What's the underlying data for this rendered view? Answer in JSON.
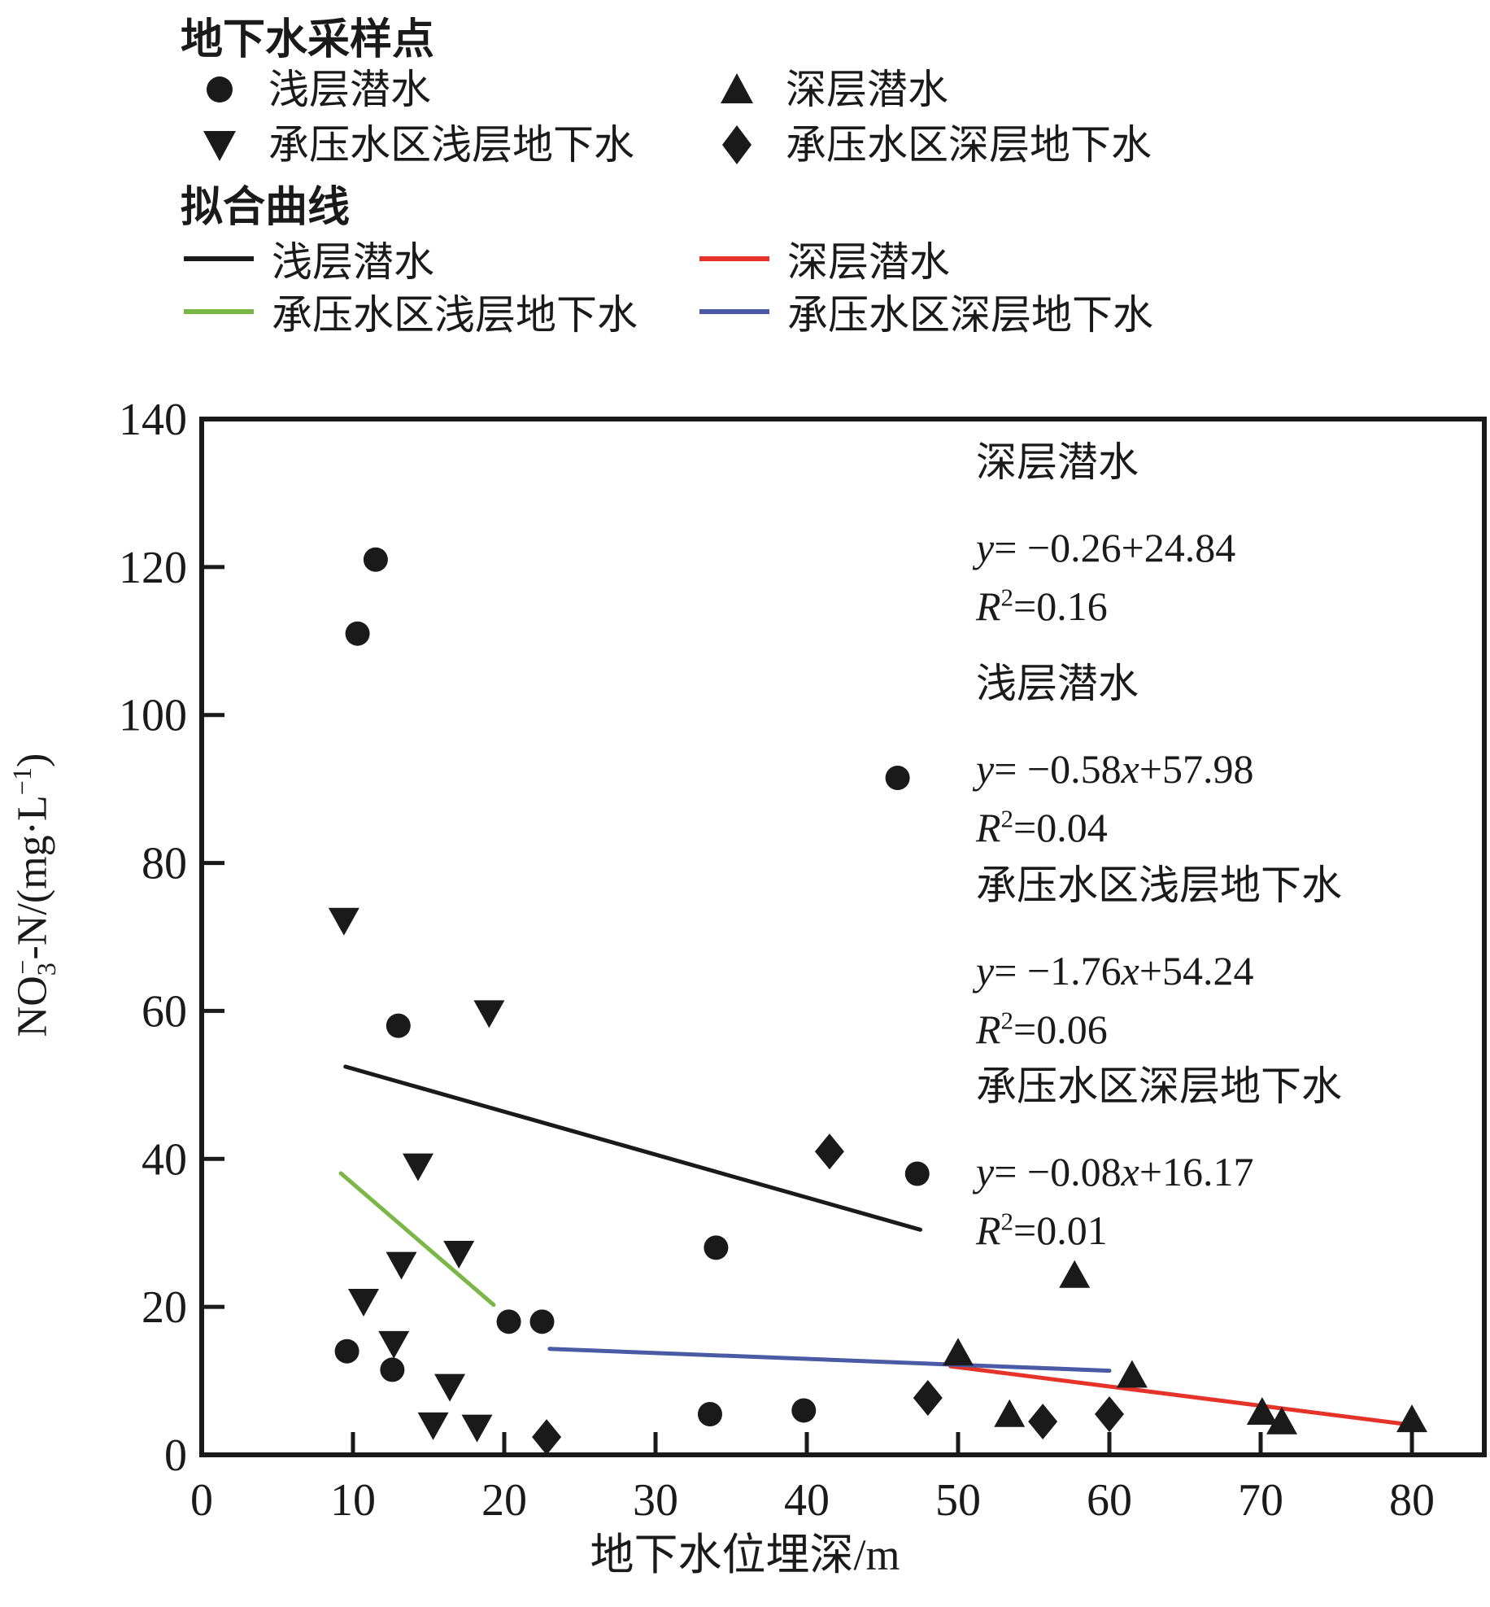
{
  "legend_samples": {
    "title": "地下水采样点",
    "items": [
      {
        "key": "shallow-phreatic",
        "marker": "circle",
        "label": "浅层潜水"
      },
      {
        "key": "deep-phreatic",
        "marker": "triangle-up",
        "label": "深层潜水"
      },
      {
        "key": "confined-area-shallow",
        "marker": "triangle-down",
        "label": "承压水区浅层地下水"
      },
      {
        "key": "confined-area-deep",
        "marker": "diamond",
        "label": "承压水区深层地下水"
      }
    ]
  },
  "legend_fits": {
    "title": "拟合曲线",
    "items": [
      {
        "key": "shallow-phreatic",
        "color": "#1a1a1a",
        "label": "浅层潜水"
      },
      {
        "key": "deep-phreatic",
        "color": "#e6332a",
        "label": "深层潜水"
      },
      {
        "key": "confined-area-shallow",
        "color": "#7ab648",
        "label": "承压水区浅层地下水"
      },
      {
        "key": "confined-area-deep",
        "color": "#4a5aa5",
        "label": "承压水区深层地下水"
      }
    ]
  },
  "axes": {
    "x_label": "地下水位埋深/m",
    "y_label_parts": {
      "p1": "NO",
      "sub": "3",
      "sup": "−",
      "p2": "-N/(mg·L",
      "sup2": "−1",
      "p3": ")"
    }
  },
  "annotations": [
    {
      "title": "深层潜水",
      "eq_lhs": "y",
      "eq_pre": "= −0.26",
      "eq_x": "",
      "eq_post": "+24.84",
      "r2_lhs": "R",
      "r2_sup": "2",
      "r2_rest": "=0.16"
    },
    {
      "title": "浅层潜水",
      "eq_lhs": "y",
      "eq_pre": "= −0.58",
      "eq_x": "x",
      "eq_post": "+57.98",
      "r2_lhs": "R",
      "r2_sup": "2",
      "r2_rest": "=0.04"
    },
    {
      "title": "承压水区浅层地下水",
      "eq_lhs": "y",
      "eq_pre": "= −1.76",
      "eq_x": "x",
      "eq_post": "+54.24",
      "r2_lhs": "R",
      "r2_sup": "2",
      "r2_rest": "=0.06"
    },
    {
      "title": "承压水区深层地下水",
      "eq_lhs": "y",
      "eq_pre": "= −0.08",
      "eq_x": "x",
      "eq_post": "+16.17",
      "r2_lhs": "R",
      "r2_sup": "2",
      "r2_rest": "=0.01"
    }
  ],
  "chart_data": {
    "type": "scatter",
    "title": "",
    "xlabel": "地下水位埋深/m",
    "ylabel": "NO3−-N/(mg·L−1)",
    "xlim": [
      0,
      84.8
    ],
    "ylim": [
      0,
      140
    ],
    "x_ticks": [
      0,
      10,
      20,
      30,
      40,
      50,
      60,
      70,
      80
    ],
    "y_ticks": [
      0,
      20,
      40,
      60,
      80,
      100,
      120,
      140
    ],
    "grid": false,
    "legend_position": "top-left",
    "marker_color": "#1a1a1a",
    "series": [
      {
        "name": "浅层潜水",
        "key": "shallow-phreatic",
        "marker": "circle",
        "color": "#1a1a1a",
        "points": [
          [
            11.5,
            121
          ],
          [
            10.3,
            111
          ],
          [
            13,
            58
          ],
          [
            46,
            91.5
          ],
          [
            47.3,
            38
          ],
          [
            34,
            28
          ],
          [
            20.3,
            18
          ],
          [
            22.5,
            18
          ],
          [
            9.6,
            14
          ],
          [
            12.6,
            11.5
          ],
          [
            33.6,
            5.5
          ],
          [
            39.8,
            6
          ]
        ]
      },
      {
        "name": "深层潜水",
        "key": "deep-phreatic",
        "marker": "triangle-up",
        "color": "#1a1a1a",
        "points": [
          [
            50,
            13.5
          ],
          [
            57.7,
            24
          ],
          [
            61.5,
            10.5
          ],
          [
            53.4,
            5.2
          ],
          [
            70.1,
            5.5
          ],
          [
            71.4,
            4.2
          ],
          [
            80,
            4.5
          ]
        ]
      },
      {
        "name": "承压水区浅层地下水",
        "key": "confined-area-shallow",
        "marker": "triangle-down",
        "color": "#1a1a1a",
        "points": [
          [
            9.4,
            72.5
          ],
          [
            19,
            60
          ],
          [
            14.3,
            39.3
          ],
          [
            17,
            27.5
          ],
          [
            13.2,
            26
          ],
          [
            10.7,
            21
          ],
          [
            12.7,
            15.3
          ],
          [
            16.4,
            9.5
          ],
          [
            15.3,
            4.3
          ],
          [
            18.2,
            4
          ]
        ]
      },
      {
        "name": "承压水区深层地下水",
        "key": "confined-area-deep",
        "marker": "diamond",
        "color": "#1a1a1a",
        "points": [
          [
            41.5,
            41
          ],
          [
            48,
            7.7
          ],
          [
            22.8,
            2.4
          ],
          [
            55.6,
            4.5
          ],
          [
            60,
            5.5
          ]
        ]
      }
    ],
    "fit_lines": [
      {
        "name": "浅层潜水",
        "key": "shallow-phreatic",
        "color": "#1a1a1a",
        "slope": -0.58,
        "intercept": 57.98,
        "x_range": [
          9.5,
          47.5
        ],
        "equation": "y= −0.26+24.84 (printed for 深层潜水), this line: y= −0.58x+57.98",
        "r2": 0.04
      },
      {
        "name": "深层潜水",
        "key": "deep-phreatic",
        "color": "#e6332a",
        "slope": -0.26,
        "intercept": 24.84,
        "x_range": [
          49.5,
          80
        ],
        "equation": "y= −0.26+24.84",
        "r2": 0.16
      },
      {
        "name": "承压水区浅层地下水",
        "key": "confined-area-shallow",
        "color": "#7ab648",
        "slope": -1.76,
        "intercept": 54.24,
        "x_range": [
          9.2,
          19.3
        ],
        "equation": "y= −1.76x+54.24",
        "r2": 0.06
      },
      {
        "name": "承压水区深层地下水",
        "key": "confined-area-deep",
        "color": "#4a5aa5",
        "slope": -0.08,
        "intercept": 16.17,
        "x_range": [
          23,
          60
        ],
        "equation": "y= −0.08x+16.17",
        "r2": 0.01
      }
    ]
  }
}
